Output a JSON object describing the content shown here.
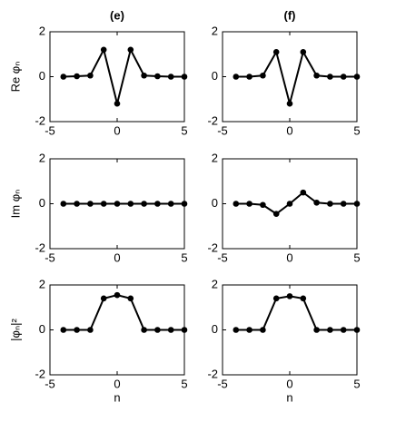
{
  "chart_data": [
    {
      "type": "line",
      "title": "(e)",
      "ylabel": "Re φₙ",
      "color": "#000000",
      "x": [
        -4,
        -3,
        -2,
        -1,
        0,
        1,
        2,
        3,
        4,
        5
      ],
      "values": [
        0,
        0.02,
        0.05,
        1.2,
        -1.2,
        1.2,
        0.05,
        0.02,
        0,
        0
      ],
      "xlim": [
        -5,
        5
      ],
      "ylim": [
        -2,
        2
      ],
      "xticks": [
        -5,
        0,
        5
      ],
      "yticks": [
        -2,
        0,
        2
      ]
    },
    {
      "type": "line",
      "title": "(f)",
      "color": "#000000",
      "x": [
        -4,
        -3,
        -2,
        -1,
        0,
        1,
        2,
        3,
        4,
        5
      ],
      "values": [
        0,
        0,
        0.05,
        1.1,
        -1.2,
        1.1,
        0.05,
        0,
        0,
        0
      ],
      "xlim": [
        -5,
        5
      ],
      "ylim": [
        -2,
        2
      ],
      "xticks": [
        -5,
        0,
        5
      ],
      "yticks": [
        -2,
        0,
        2
      ]
    },
    {
      "type": "line",
      "ylabel": "Im φₙ",
      "color": "#000000",
      "x": [
        -4,
        -3,
        -2,
        -1,
        0,
        1,
        2,
        3,
        4,
        5
      ],
      "values": [
        0,
        0,
        0,
        0,
        0,
        0,
        0,
        0,
        0,
        0
      ],
      "xlim": [
        -5,
        5
      ],
      "ylim": [
        -2,
        2
      ],
      "xticks": [
        -5,
        0,
        5
      ],
      "yticks": [
        -2,
        0,
        2
      ]
    },
    {
      "type": "line",
      "color": "#000000",
      "x": [
        -4,
        -3,
        -2,
        -1,
        0,
        1,
        2,
        3,
        4,
        5
      ],
      "values": [
        0,
        0,
        -0.05,
        -0.45,
        0,
        0.5,
        0.05,
        0,
        0,
        0
      ],
      "xlim": [
        -5,
        5
      ],
      "ylim": [
        -2,
        2
      ],
      "xticks": [
        -5,
        0,
        5
      ],
      "yticks": [
        -2,
        0,
        2
      ]
    },
    {
      "type": "line",
      "ylabel": "|φₙ|²",
      "xlabel": "n",
      "color": "#000000",
      "x": [
        -4,
        -3,
        -2,
        -1,
        0,
        1,
        2,
        3,
        4,
        5
      ],
      "values": [
        0,
        0,
        0,
        1.4,
        1.55,
        1.4,
        0,
        0,
        0,
        0
      ],
      "xlim": [
        -5,
        5
      ],
      "ylim": [
        -2,
        2
      ],
      "xticks": [
        -5,
        0,
        5
      ],
      "yticks": [
        -2,
        0,
        2
      ]
    },
    {
      "type": "line",
      "xlabel": "n",
      "color": "#000000",
      "x": [
        -4,
        -3,
        -2,
        -1,
        0,
        1,
        2,
        3,
        4,
        5
      ],
      "values": [
        0,
        0,
        0,
        1.4,
        1.5,
        1.4,
        0,
        0,
        0,
        0
      ],
      "xlim": [
        -5,
        5
      ],
      "ylim": [
        -2,
        2
      ],
      "xticks": [
        -5,
        0,
        5
      ],
      "yticks": [
        -2,
        0,
        2
      ]
    }
  ]
}
